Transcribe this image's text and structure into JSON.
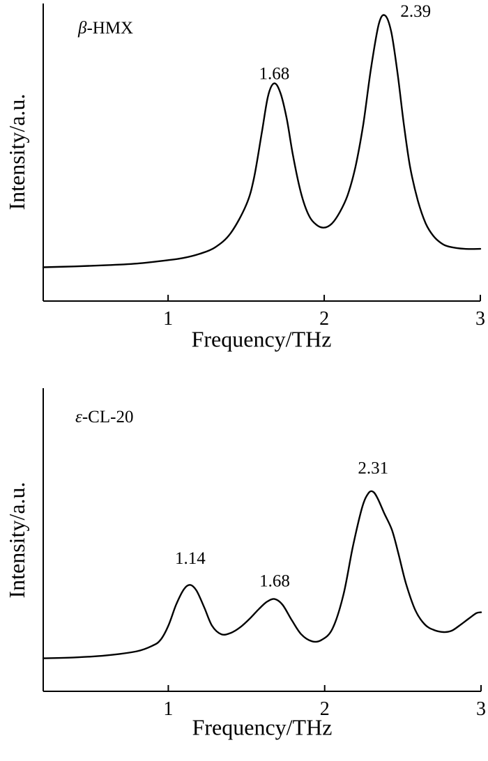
{
  "chart_data": [
    {
      "type": "line",
      "title_symbol": "β",
      "title_text": "-HMX",
      "xlabel": "Frequency/THz",
      "ylabel": "Intensity/a.u.",
      "xlim": [
        0.2,
        3.0
      ],
      "ylim": [
        0,
        1.0
      ],
      "xticks": [
        "1",
        "2",
        "3"
      ],
      "grid": false,
      "annotations": [
        {
          "text": "1.68",
          "x": 1.68,
          "y": 0.75
        },
        {
          "text": "2.39",
          "x": 2.39,
          "y": 0.97
        }
      ],
      "series": [
        {
          "x": [
            0.2,
            0.4,
            0.6,
            0.8,
            1.0,
            1.1,
            1.2,
            1.3,
            1.4,
            1.5,
            1.55,
            1.6,
            1.64,
            1.68,
            1.72,
            1.76,
            1.8,
            1.85,
            1.9,
            1.95,
            2.0,
            2.05,
            2.1,
            2.15,
            2.2,
            2.25,
            2.3,
            2.35,
            2.39,
            2.43,
            2.47,
            2.51,
            2.55,
            2.6,
            2.65,
            2.7,
            2.75,
            2.8,
            2.9,
            3.0
          ],
          "y": [
            0.085,
            0.088,
            0.092,
            0.098,
            0.11,
            0.118,
            0.132,
            0.155,
            0.205,
            0.305,
            0.4,
            0.56,
            0.69,
            0.735,
            0.7,
            0.61,
            0.48,
            0.35,
            0.27,
            0.235,
            0.225,
            0.24,
            0.28,
            0.34,
            0.44,
            0.59,
            0.79,
            0.945,
            0.975,
            0.915,
            0.77,
            0.59,
            0.44,
            0.32,
            0.24,
            0.195,
            0.17,
            0.158,
            0.15,
            0.15
          ]
        }
      ]
    },
    {
      "type": "line",
      "title_symbol": "ε",
      "title_text": "-CL-20",
      "xlabel": "Frequency/THz",
      "ylabel": "Intensity/a.u.",
      "xlim": [
        0.2,
        3.0
      ],
      "ylim": [
        0,
        1.0
      ],
      "xticks": [
        "1",
        "2",
        "3"
      ],
      "grid": false,
      "annotations": [
        {
          "text": "1.14",
          "x": 1.14,
          "y": 0.41
        },
        {
          "text": "1.68",
          "x": 1.68,
          "y": 0.33
        },
        {
          "text": "2.31",
          "x": 2.31,
          "y": 0.73
        }
      ],
      "series": [
        {
          "x": [
            0.2,
            0.4,
            0.6,
            0.8,
            0.9,
            0.95,
            1.0,
            1.05,
            1.1,
            1.14,
            1.18,
            1.23,
            1.28,
            1.34,
            1.4,
            1.46,
            1.52,
            1.58,
            1.63,
            1.68,
            1.73,
            1.79,
            1.85,
            1.92,
            1.98,
            2.05,
            2.12,
            2.18,
            2.24,
            2.28,
            2.31,
            2.34,
            2.38,
            2.43,
            2.47,
            2.52,
            2.58,
            2.64,
            2.7,
            2.76,
            2.81,
            2.86,
            2.92,
            2.97,
            3.0
          ],
          "y": [
            0.075,
            0.078,
            0.085,
            0.1,
            0.12,
            0.14,
            0.19,
            0.265,
            0.32,
            0.335,
            0.315,
            0.255,
            0.19,
            0.16,
            0.165,
            0.185,
            0.215,
            0.25,
            0.275,
            0.285,
            0.265,
            0.21,
            0.16,
            0.135,
            0.14,
            0.18,
            0.3,
            0.47,
            0.61,
            0.66,
            0.665,
            0.64,
            0.59,
            0.53,
            0.45,
            0.34,
            0.245,
            0.195,
            0.175,
            0.168,
            0.172,
            0.19,
            0.215,
            0.235,
            0.238
          ]
        }
      ]
    }
  ]
}
